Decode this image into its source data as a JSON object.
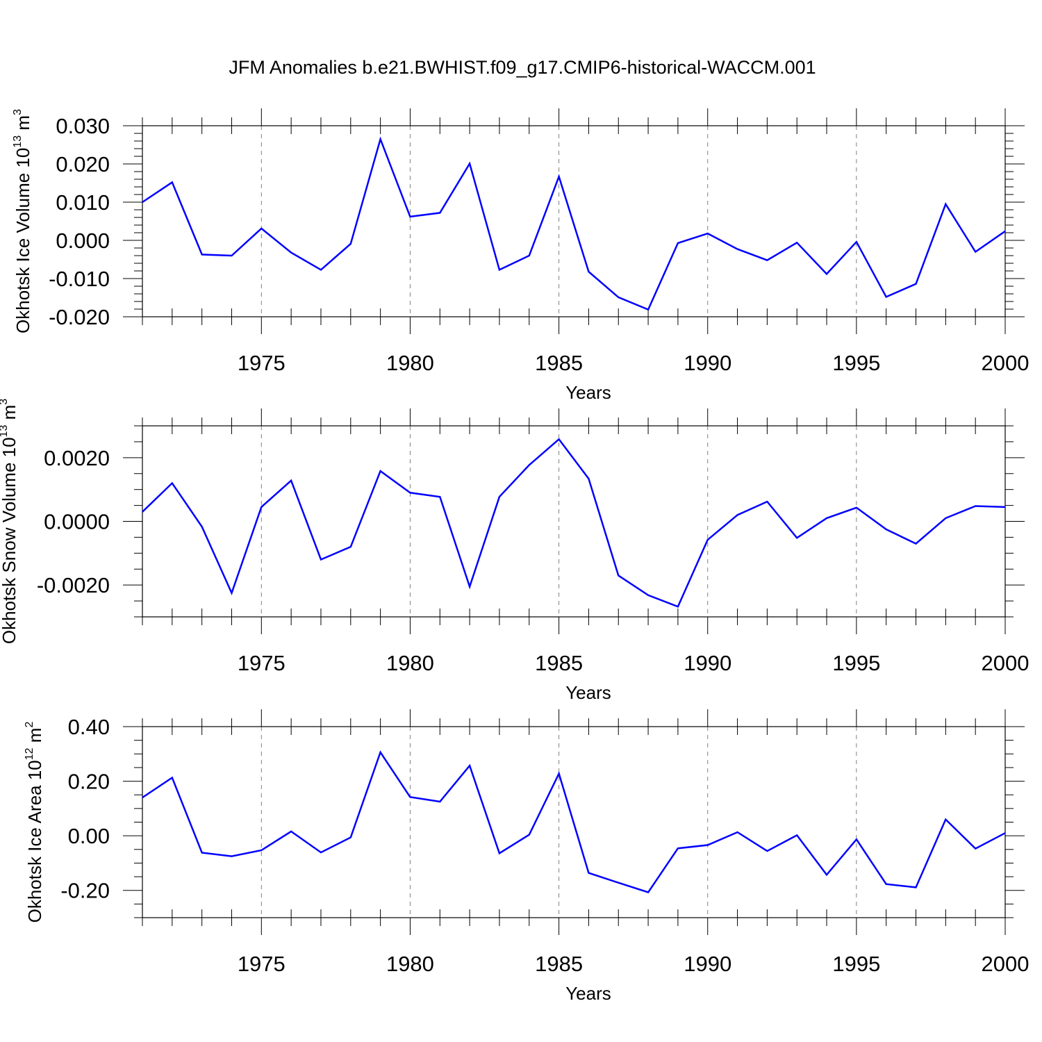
{
  "title": "JFM Anomalies b.e21.BWHIST.f09_g17.CMIP6-historical-WACCM.001",
  "colors": {
    "line": "#0000ff",
    "axis": "#000000",
    "grid": "#808080"
  },
  "chart_data": [
    {
      "type": "line",
      "ylabel": "Okhotsk Ice Volume 10",
      "ylabel_exp": "13",
      "ylabel_unit": " m",
      "ylabel_unit_exp": "3",
      "xlabel": "Years",
      "xlim": [
        1971,
        2000
      ],
      "ylim": [
        -0.02,
        0.03
      ],
      "yticks": [
        -0.02,
        -0.01,
        0.0,
        0.01,
        0.02,
        0.03
      ],
      "ytick_labels": [
        "-0.020",
        "-0.010",
        "0.000",
        "0.010",
        "0.020",
        "0.030"
      ],
      "yminor_step": 0.002,
      "xticks": [
        1975,
        1980,
        1985,
        1990,
        1995,
        2000
      ],
      "xtick_labels": [
        "1975",
        "1980",
        "1985",
        "1990",
        "1995",
        "2000"
      ],
      "grid": "vertical dashed at major x ticks",
      "series": [
        {
          "x": [
            1971,
            1972,
            1973,
            1974,
            1975,
            1976,
            1977,
            1978,
            1979,
            1980,
            1981,
            1982,
            1983,
            1984,
            1985,
            1986,
            1987,
            1988,
            1989,
            1990,
            1991,
            1992,
            1993,
            1994,
            1995,
            1996,
            1997,
            1998,
            1999,
            2000
          ],
          "values": [
            0.01,
            0.0152,
            -0.0037,
            -0.004,
            0.0031,
            -0.0032,
            -0.0077,
            -0.0009,
            0.0265,
            0.0062,
            0.0072,
            0.0201,
            -0.0077,
            -0.004,
            0.0167,
            -0.0082,
            -0.0149,
            -0.0181,
            -0.0007,
            0.0018,
            -0.0023,
            -0.0052,
            -0.0006,
            -0.0088,
            -0.0004,
            -0.0148,
            -0.0114,
            0.0095,
            -0.003,
            0.0024
          ]
        }
      ]
    },
    {
      "type": "line",
      "ylabel": "Okhotsk Snow Volume 10",
      "ylabel_exp": "13",
      "ylabel_unit": " m",
      "ylabel_unit_exp": "3",
      "xlabel": "Years",
      "xlim": [
        1971,
        2000
      ],
      "ylim": [
        -0.003,
        0.003
      ],
      "yticks": [
        -0.002,
        0.0,
        0.002
      ],
      "ytick_labels": [
        "-0.0020",
        "0.0000",
        "0.0020"
      ],
      "yminor_step": 0.0005,
      "xticks": [
        1975,
        1980,
        1985,
        1990,
        1995,
        2000
      ],
      "xtick_labels": [
        "1975",
        "1980",
        "1985",
        "1990",
        "1995",
        "2000"
      ],
      "grid": "vertical dashed at major x ticks",
      "series": [
        {
          "x": [
            1971,
            1972,
            1973,
            1974,
            1975,
            1976,
            1977,
            1978,
            1979,
            1980,
            1981,
            1982,
            1983,
            1984,
            1985,
            1986,
            1987,
            1988,
            1989,
            1990,
            1991,
            1992,
            1993,
            1994,
            1995,
            1996,
            1997,
            1998,
            1999,
            2000
          ],
          "values": [
            0.0003,
            0.0012,
            -0.00017,
            -0.00225,
            0.00045,
            0.00128,
            -0.0012,
            -0.0008,
            0.00158,
            0.0009,
            0.00077,
            -0.00205,
            0.00077,
            0.00177,
            0.00258,
            0.00134,
            -0.0017,
            -0.00232,
            -0.00268,
            -0.00058,
            0.0002,
            0.00062,
            -0.00052,
            0.0001,
            0.00043,
            -0.00025,
            -0.0007,
            0.0001,
            0.00048,
            0.00045
          ]
        }
      ]
    },
    {
      "type": "line",
      "ylabel": "Okhotsk Ice Area 10",
      "ylabel_exp": "12",
      "ylabel_unit": " m",
      "ylabel_unit_exp": "2",
      "xlabel": "Years",
      "xlim": [
        1971,
        2000
      ],
      "ylim": [
        -0.3,
        0.4
      ],
      "yticks": [
        -0.2,
        0.0,
        0.2,
        0.4
      ],
      "ytick_labels": [
        "-0.20",
        "0.00",
        "0.20",
        "0.40"
      ],
      "yminor_step": 0.05,
      "xticks": [
        1975,
        1980,
        1985,
        1990,
        1995,
        2000
      ],
      "xtick_labels": [
        "1975",
        "1980",
        "1985",
        "1990",
        "1995",
        "2000"
      ],
      "grid": "vertical dashed at major x ticks",
      "series": [
        {
          "x": [
            1971,
            1972,
            1973,
            1974,
            1975,
            1976,
            1977,
            1978,
            1979,
            1980,
            1981,
            1982,
            1983,
            1984,
            1985,
            1986,
            1987,
            1988,
            1989,
            1990,
            1991,
            1992,
            1993,
            1994,
            1995,
            1996,
            1997,
            1998,
            1999,
            2000
          ],
          "values": [
            0.14,
            0.213,
            -0.062,
            -0.075,
            -0.053,
            0.016,
            -0.061,
            -0.006,
            0.306,
            0.142,
            0.125,
            0.257,
            -0.064,
            0.004,
            0.228,
            -0.136,
            -0.172,
            -0.207,
            -0.046,
            -0.034,
            0.013,
            -0.056,
            0.002,
            -0.143,
            -0.013,
            -0.177,
            -0.189,
            0.06,
            -0.047,
            0.01
          ]
        }
      ]
    }
  ]
}
